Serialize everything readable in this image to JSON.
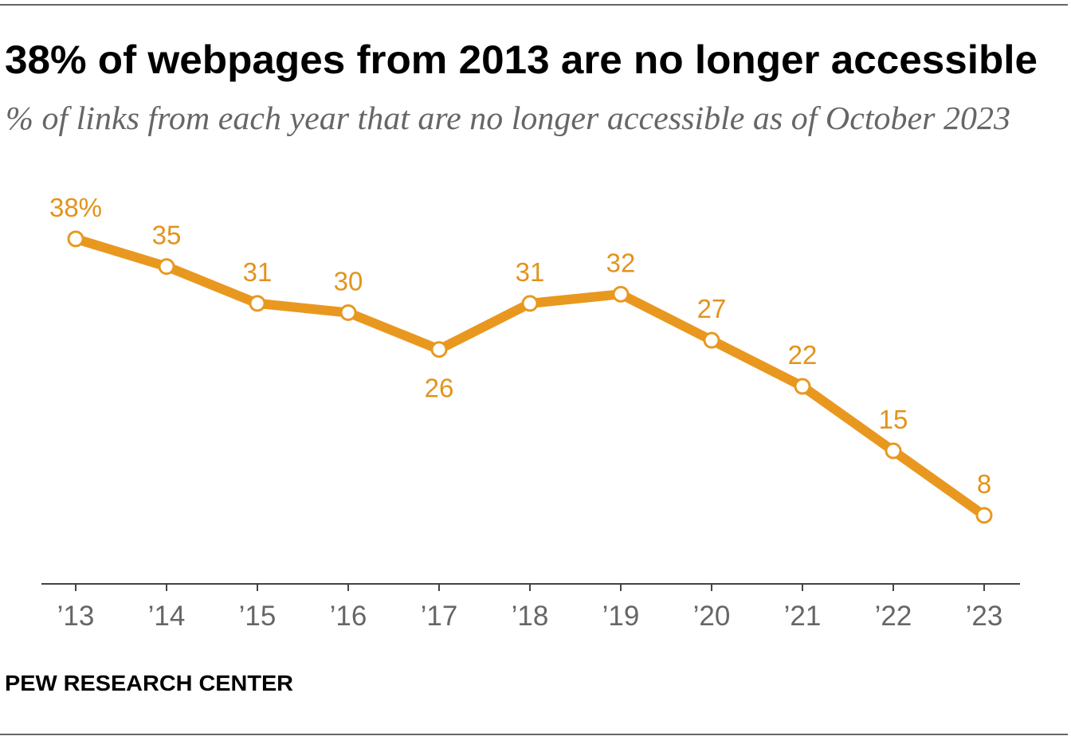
{
  "chart_data": {
    "type": "line",
    "title": "38% of webpages from 2013 are no longer accessible",
    "subtitle": "% of links from each year that are no longer accessible as of October 2023",
    "categories": [
      "’13",
      "’14",
      "’15",
      "’16",
      "’17",
      "’18",
      "’19",
      "’20",
      "’21",
      "’22",
      "’23"
    ],
    "values": [
      38,
      35,
      31,
      30,
      26,
      31,
      32,
      27,
      22,
      15,
      8
    ],
    "data_labels": [
      "38%",
      "35",
      "31",
      "30",
      "26",
      "31",
      "32",
      "27",
      "22",
      "15",
      "8"
    ],
    "ylim": [
      0,
      40
    ],
    "grid": false
  },
  "footer": {
    "credit": "PEW RESEARCH CENTER"
  },
  "colors": {
    "line": "#E9981F",
    "marker_fill": "#FFFFFF",
    "data_label": "#E3931C",
    "title": "#000000",
    "subtitle": "#666666",
    "tick_label": "#666666",
    "axis": "#444444",
    "rule": "#333333"
  }
}
